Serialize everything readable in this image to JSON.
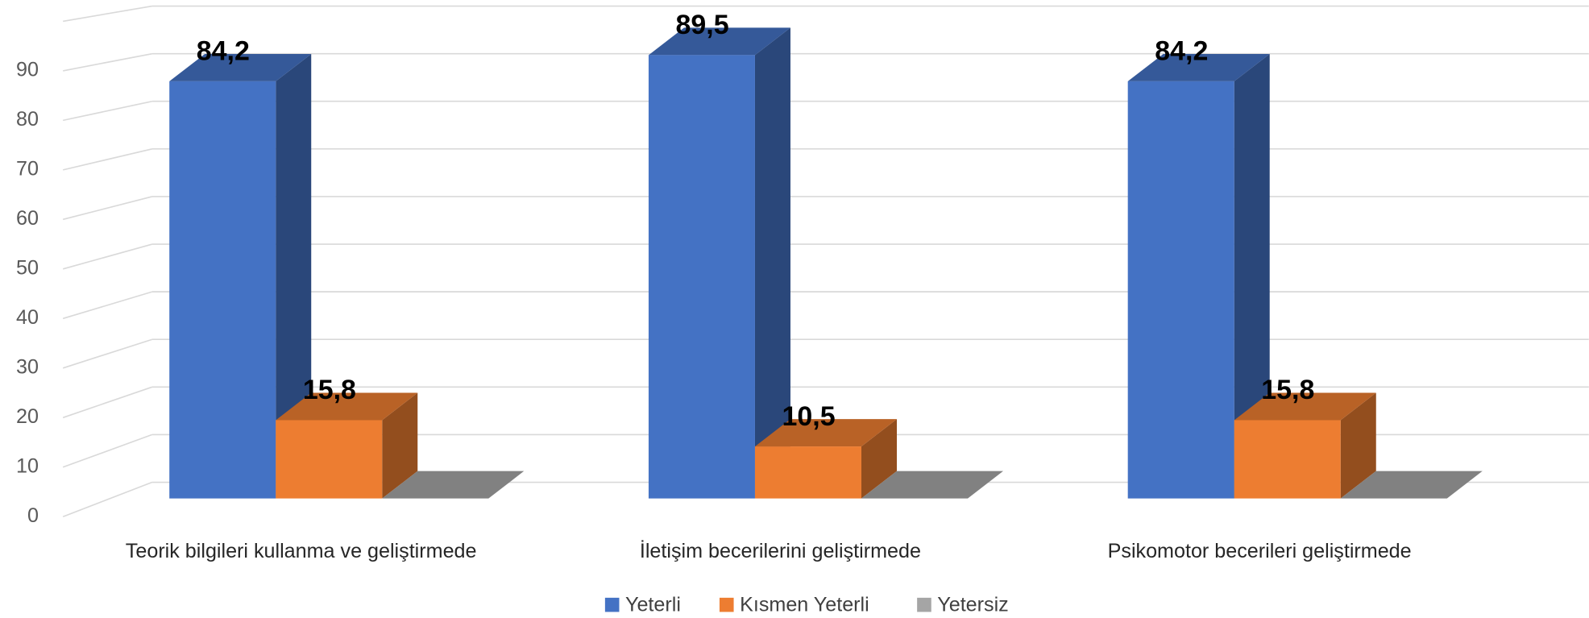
{
  "chart_data": {
    "type": "bar3d",
    "categories": [
      "Teorik bilgileri kullanma ve geliştirmede",
      "İletişim becerilerini geliştirmede",
      "Psikomotor becerileri geliştirmede"
    ],
    "series": [
      {
        "name": "Yeterli",
        "color": "#4472c4",
        "values": [
          84.2,
          89.5,
          84.2
        ],
        "value_labels": [
          "84,2",
          "89,5",
          "84,2"
        ]
      },
      {
        "name": "Kısmen Yeterli",
        "color": "#ed7d31",
        "values": [
          15.8,
          10.5,
          15.8
        ],
        "value_labels": [
          "15,8",
          "10,5",
          "15,8"
        ]
      },
      {
        "name": "Yetersiz",
        "color": "#a5a5a5",
        "values": [
          0,
          0,
          0
        ]
      }
    ],
    "ylim": [
      0,
      100
    ],
    "yticks": [
      0,
      10,
      20,
      30,
      40,
      50,
      60,
      70,
      80,
      90
    ],
    "grid": true,
    "legend": "bottom"
  }
}
